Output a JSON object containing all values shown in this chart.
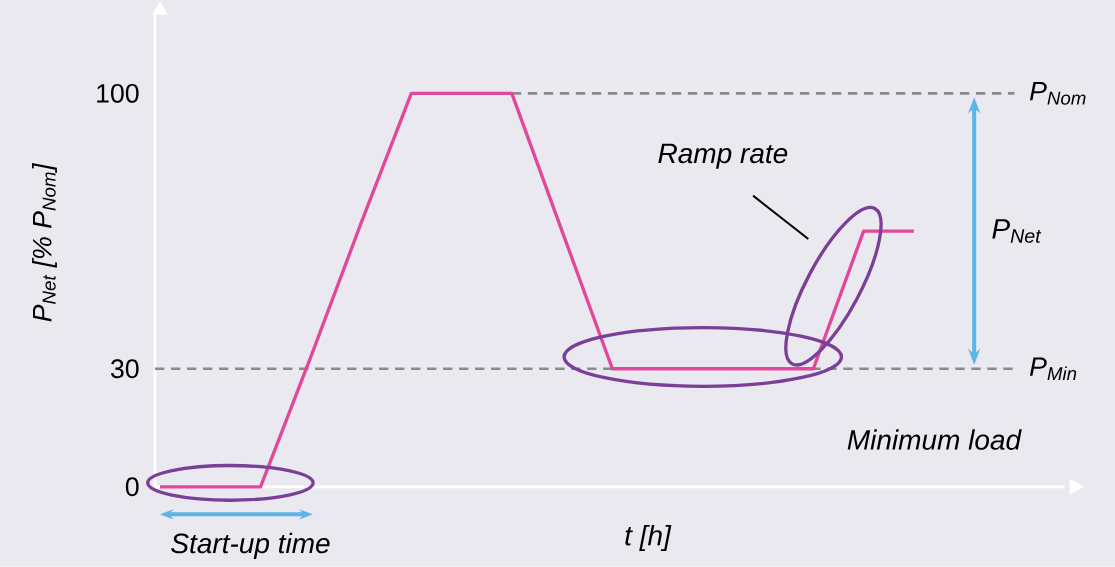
{
  "chart_data": {
    "type": "line",
    "xlabel": "t [h]",
    "ylabel": "P$_{Net}$ [% P$_{Nom}$]",
    "categories": [
      null,
      null,
      null,
      null,
      null,
      null,
      null,
      null,
      null,
      null,
      null,
      null,
      null,
      null,
      null,
      null
    ],
    "series": [
      {
        "color": "#e0489a",
        "values": [
          0,
          0,
          0,
          33,
          67,
          100,
          100,
          100,
          65,
          30,
          30,
          30,
          30,
          30,
          65,
          65
        ]
      }
    ],
    "ylim": [
      0,
      120
    ],
    "yticks": [
      0,
      30,
      100
    ],
    "tick_labels": "y",
    "line_style": "solid",
    "ref_lines": [
      {
        "axis": "y",
        "value": 100,
        "label": "P$_{Nom}$",
        "color": "#8a8a8a",
        "line_style": "dashed"
      },
      {
        "axis": "y",
        "value": 30,
        "label": "P$_{Min}$",
        "color": "#8a8a8a",
        "line_style": "dashed"
      }
    ],
    "annotations": [
      "Ramp rate",
      "Minimum load",
      "Start-up time",
      "P$_{Net}$"
    ]
  }
}
